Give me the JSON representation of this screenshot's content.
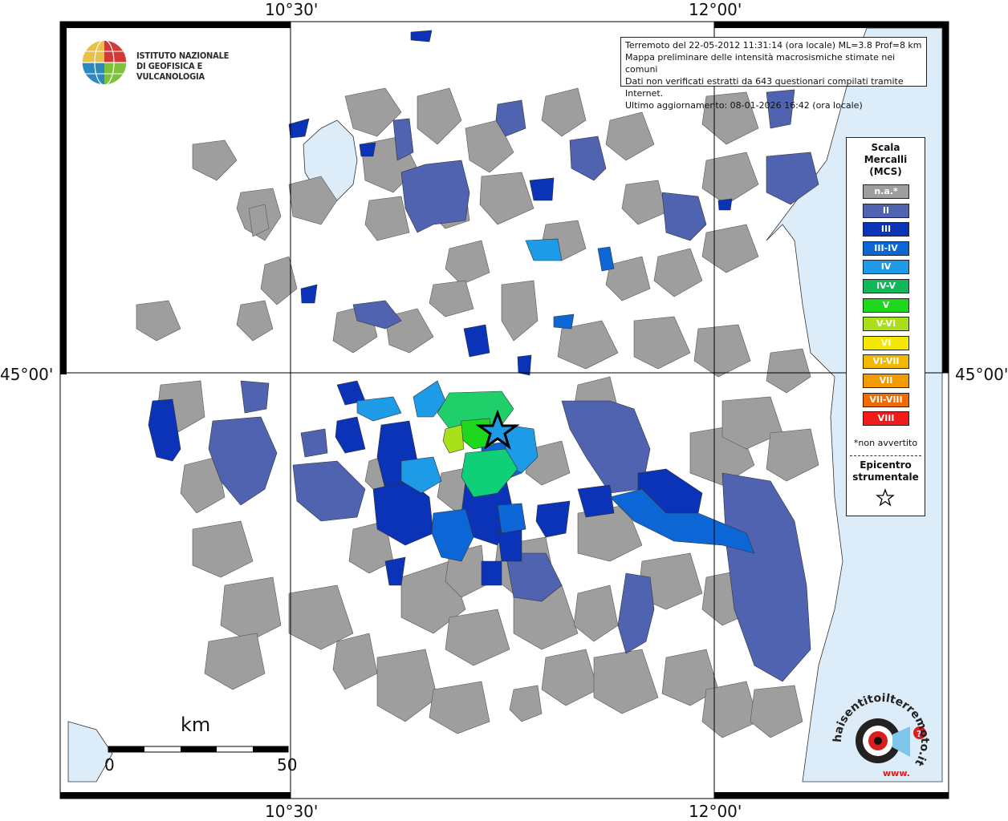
{
  "axes": {
    "top_left": "10°30'",
    "top_right": "12°00'",
    "bottom_left": "10°30'",
    "bottom_right": "12°00'",
    "left_mid": "45°00'",
    "right_mid": "45°00'"
  },
  "institute": {
    "line1": "ISTITUTO NAZIONALE",
    "line2": "DI GEOFISICA E VULCANOLOGIA"
  },
  "info": {
    "line1": "Terremoto del 22-05-2012 11:31:14 (ora locale) ML=3.8 Prof=8 km",
    "line2": "Mappa preliminare delle intensità macrosismiche stimate nei comuni",
    "line3": "Dati non verificati estratti da 643 questionari compilati tramite Internet.",
    "line4": "Ultimo aggiornamento: 08-01-2026 16:42 (ora locale)"
  },
  "legend": {
    "title_line1": "Scala",
    "title_line2": "Mercalli",
    "title_line3": "(MCS)",
    "items": [
      {
        "label": "n.a.*",
        "color": "#9e9e9e"
      },
      {
        "label": "II",
        "color": "#4f63b0"
      },
      {
        "label": "III",
        "color": "#0a33b8"
      },
      {
        "label": "III-IV",
        "color": "#0d66d6"
      },
      {
        "label": "IV",
        "color": "#1e9be6"
      },
      {
        "label": "IV-V",
        "color": "#10b85a"
      },
      {
        "label": "V",
        "color": "#1ed81e"
      },
      {
        "label": "V-VI",
        "color": "#a8e01a"
      },
      {
        "label": "VI",
        "color": "#f2e800"
      },
      {
        "label": "VI-VII",
        "color": "#f2b800"
      },
      {
        "label": "VII",
        "color": "#f29a00"
      },
      {
        "label": "VII-VIII",
        "color": "#f26a00"
      },
      {
        "label": "VIII",
        "color": "#f21a1a"
      }
    ],
    "note": "*non avvertito",
    "epicenter_line1": "Epicentro",
    "epicenter_line2": "strumentale"
  },
  "scale": {
    "unit": "km",
    "start": "0",
    "end": "50"
  },
  "site_logo": {
    "text": "haisentitoilterremoto.it",
    "url_text": "www."
  },
  "colors": {
    "sea": "#dcecf8",
    "na": "#9e9e9e",
    "ii": "#4f63b0",
    "iii": "#0a33b8",
    "iii_iv": "#0d66d6",
    "iv": "#1e9be6",
    "iv_v": "#10b85a",
    "v": "#1ed81e",
    "v_vi": "#a8e01a"
  }
}
